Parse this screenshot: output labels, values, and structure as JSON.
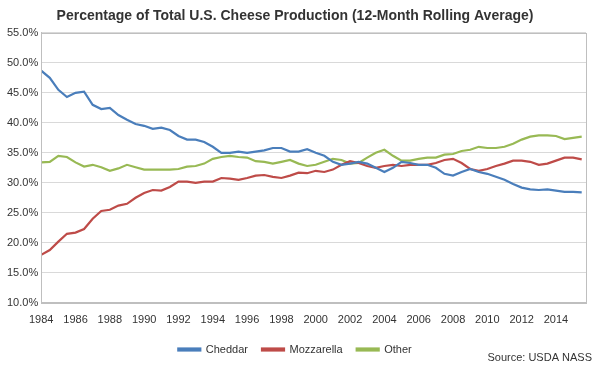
{
  "chart_data": {
    "type": "line",
    "title": "Percentage of Total U.S. Cheese Production (12-Month Rolling Average)",
    "annotations": [
      "Source: USDA NASS"
    ],
    "x": [
      1984,
      1984.5,
      1985,
      1985.5,
      1986,
      1986.5,
      1987,
      1987.5,
      1988,
      1988.5,
      1989,
      1989.5,
      1990,
      1990.5,
      1991,
      1991.5,
      1992,
      1992.5,
      1993,
      1993.5,
      1994,
      1994.5,
      1995,
      1995.5,
      1996,
      1996.5,
      1997,
      1997.5,
      1998,
      1998.5,
      1999,
      1999.5,
      2000,
      2000.5,
      2001,
      2001.5,
      2002,
      2002.5,
      2003,
      2003.5,
      2004,
      2004.5,
      2005,
      2005.5,
      2006,
      2006.5,
      2007,
      2007.5,
      2008,
      2008.5,
      2009,
      2009.5,
      2010,
      2010.5,
      2011,
      2011.5,
      2012,
      2012.5,
      2013,
      2013.5,
      2014,
      2014.5,
      2015,
      2015.5
    ],
    "series": [
      {
        "name": "Cheddar",
        "color": "#4a7ebb",
        "values": [
          48.7,
          47.5,
          45.5,
          44.3,
          45,
          45.2,
          43,
          42.3,
          42.5,
          41.3,
          40.5,
          39.8,
          39.5,
          39,
          39.2,
          38.8,
          37.8,
          37.2,
          37.2,
          36.8,
          36,
          35,
          35,
          35.2,
          35,
          35.2,
          35.4,
          35.8,
          35.8,
          35.2,
          35.2,
          35.6,
          35,
          34.5,
          33.5,
          33,
          33.2,
          33.5,
          33.2,
          32.5,
          31.8,
          32.5,
          33.5,
          33.3,
          33,
          33,
          32.5,
          31.5,
          31.2,
          31.8,
          32.3,
          31.8,
          31.5,
          31,
          30.5,
          29.8,
          29.2,
          28.9,
          28.8,
          28.9,
          28.7,
          28.5,
          28.5,
          28.4
        ]
      },
      {
        "name": "Mozzarella",
        "color": "#be4b48",
        "values": [
          18,
          18.8,
          20.2,
          21.5,
          21.7,
          22.3,
          24,
          25.3,
          25.5,
          26.2,
          26.5,
          27.5,
          28.3,
          28.8,
          28.7,
          29.3,
          30.2,
          30.2,
          30,
          30.2,
          30.2,
          30.8,
          30.7,
          30.5,
          30.8,
          31.2,
          31.3,
          31,
          30.8,
          31.2,
          31.7,
          31.6,
          32,
          31.8,
          32.2,
          33,
          33.6,
          33.3,
          32.8,
          32.5,
          32.8,
          33,
          32.8,
          33,
          33,
          33,
          33.3,
          33.8,
          34,
          33.3,
          32.3,
          32,
          32.3,
          32.8,
          33.2,
          33.7,
          33.7,
          33.5,
          33,
          33.2,
          33.7,
          34.2,
          34.2,
          33.9
        ]
      },
      {
        "name": "Other",
        "color": "#98b954",
        "values": [
          33.4,
          33.5,
          34.5,
          34.3,
          33.4,
          32.7,
          33,
          32.6,
          32,
          32.4,
          33,
          32.6,
          32.2,
          32.2,
          32.2,
          32.2,
          32.3,
          32.7,
          32.8,
          33.2,
          34,
          34.3,
          34.5,
          34.3,
          34.2,
          33.6,
          33.5,
          33.2,
          33.5,
          33.8,
          33.2,
          32.8,
          33,
          33.5,
          34,
          33.8,
          33.2,
          33.3,
          34.2,
          35,
          35.5,
          34.5,
          33.7,
          33.7,
          34,
          34.2,
          34.2,
          34.7,
          34.8,
          35.3,
          35.5,
          36,
          35.8,
          35.8,
          36,
          36.5,
          37.2,
          37.7,
          37.9,
          37.9,
          37.8,
          37.3,
          37.5,
          37.7
        ]
      }
    ],
    "xlim": [
      1984,
      2015.75
    ],
    "xticks": [
      1984,
      1986,
      1988,
      1990,
      1992,
      1994,
      1996,
      1998,
      2000,
      2002,
      2004,
      2006,
      2008,
      2010,
      2012,
      2014
    ],
    "ylim": [
      10,
      55
    ],
    "yticks": [
      {
        "value": 10,
        "label": "10.0%"
      },
      {
        "value": 15,
        "label": "15.0%"
      },
      {
        "value": 20,
        "label": "20.0%"
      },
      {
        "value": 25,
        "label": "25.0%"
      },
      {
        "value": 30,
        "label": "30.0%"
      },
      {
        "value": 35,
        "label": "35.0%"
      },
      {
        "value": 40,
        "label": "40.0%"
      },
      {
        "value": 45,
        "label": "45.0%"
      },
      {
        "value": 50,
        "label": "50.0%"
      },
      {
        "value": 55,
        "label": "55.0%"
      }
    ],
    "grid": true,
    "legend": "bottom"
  }
}
